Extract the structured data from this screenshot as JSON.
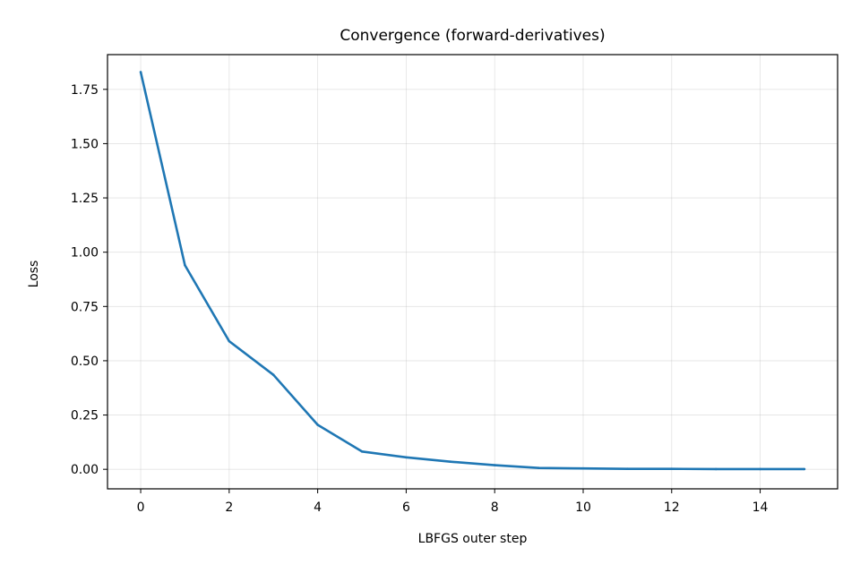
{
  "chart_data": {
    "type": "line",
    "title": "Convergence (forward-derivatives)",
    "xlabel": "LBFGS outer step",
    "ylabel": "Loss",
    "xlim": [
      -0.75,
      15.75
    ],
    "ylim": [
      -0.09,
      1.91
    ],
    "xticks": [
      0,
      2,
      4,
      6,
      8,
      10,
      12,
      14
    ],
    "xtick_labels": [
      "0",
      "2",
      "4",
      "6",
      "8",
      "10",
      "12",
      "14"
    ],
    "yticks": [
      0.0,
      0.25,
      0.5,
      0.75,
      1.0,
      1.25,
      1.5,
      1.75
    ],
    "ytick_labels": [
      "0.00",
      "0.25",
      "0.50",
      "0.75",
      "1.00",
      "1.25",
      "1.50",
      "1.75"
    ],
    "grid": true,
    "series": [
      {
        "color": "#1f77b4",
        "x": [
          0,
          1,
          2,
          3,
          4,
          5,
          6,
          7,
          8,
          9,
          10,
          11,
          12,
          13,
          14,
          15
        ],
        "values": [
          1.83,
          0.94,
          0.59,
          0.435,
          0.205,
          0.082,
          0.055,
          0.035,
          0.019,
          0.006,
          0.004,
          0.002,
          0.002,
          0.001,
          0.001,
          0.001
        ]
      }
    ]
  }
}
